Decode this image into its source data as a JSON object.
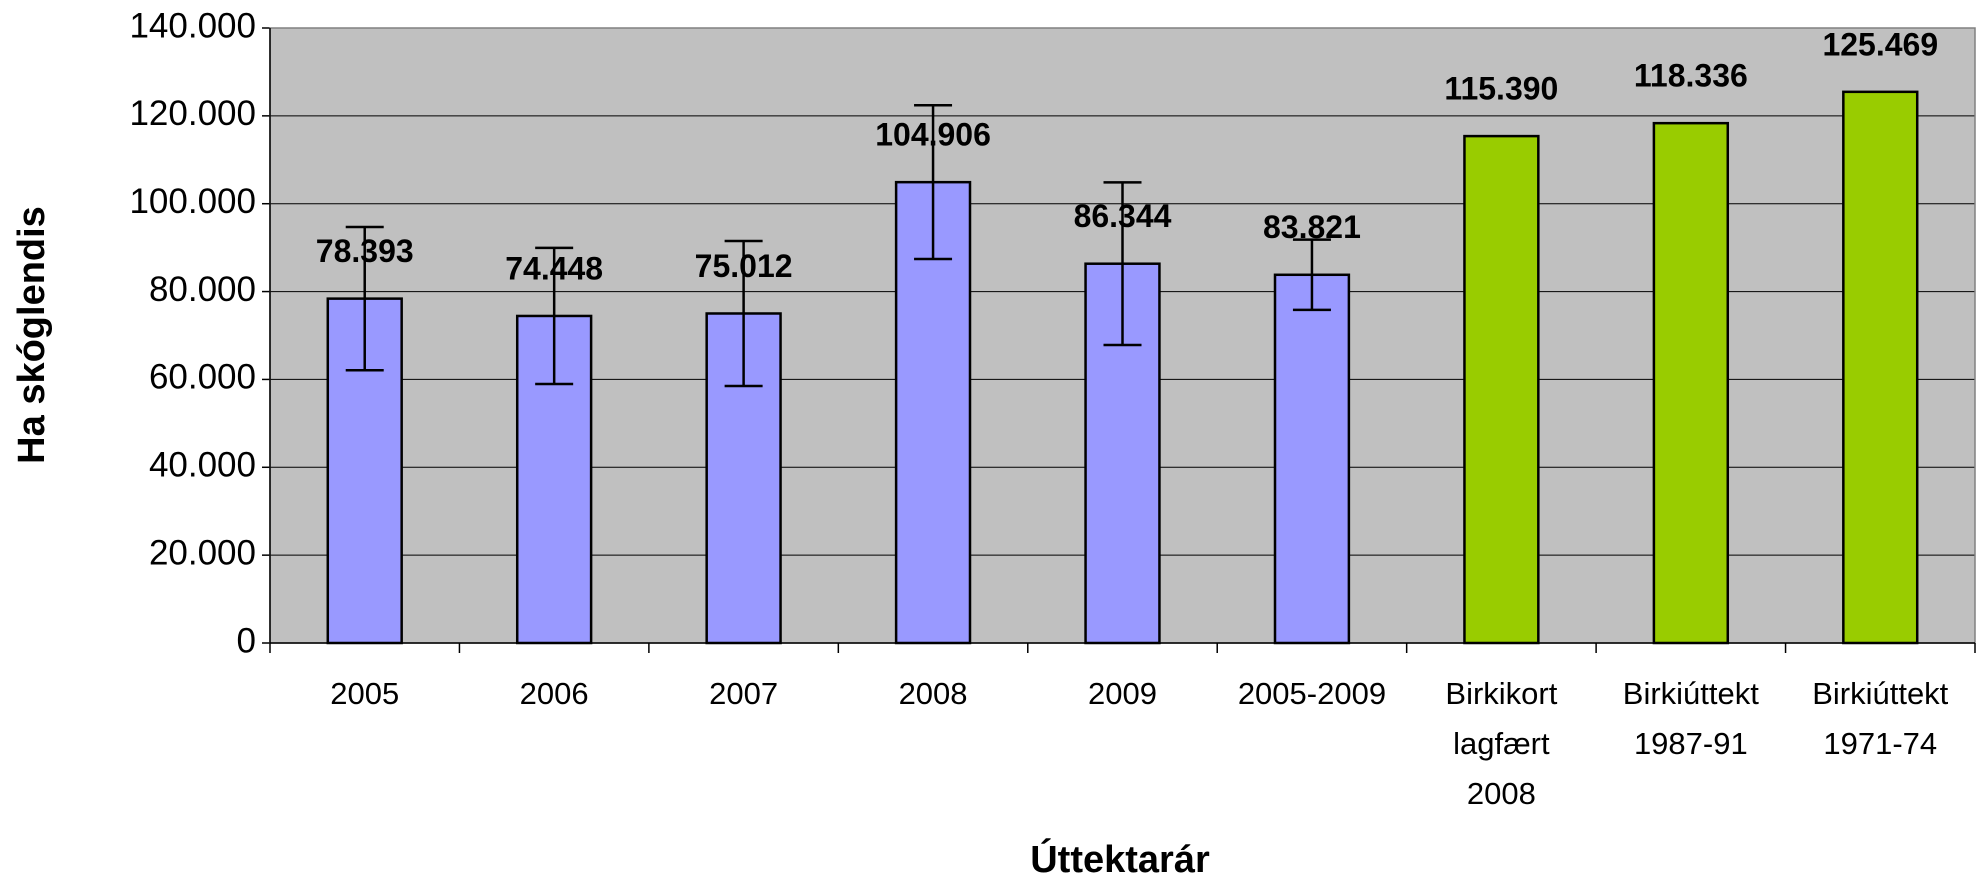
{
  "chart_data": {
    "type": "bar",
    "y_label": "Ha skóglendis",
    "x_label": "Úttektarár",
    "categories": [
      "2005",
      "2006",
      "2007",
      "2008",
      "2009",
      "2005-2009",
      "Birkikort\nlagfært\n2008",
      "Birkiúttekt\n1987-91",
      "Birkiúttekt\n1971-74"
    ],
    "values": [
      78393,
      74448,
      75012,
      104906,
      86344,
      83821,
      115390,
      118336,
      125469
    ],
    "value_labels": [
      "78.393",
      "74.448",
      "75.012",
      "104.906",
      "86.344",
      "83.821",
      "115.390",
      "118.336",
      "125.469"
    ],
    "errors": [
      16300,
      15500,
      16500,
      17500,
      18500,
      8000,
      null,
      null,
      null
    ],
    "colors": [
      "#9999ff",
      "#9999ff",
      "#9999ff",
      "#9999ff",
      "#9999ff",
      "#9999ff",
      "#99cc00",
      "#99cc00",
      "#99cc00"
    ],
    "ylim": [
      0,
      140000
    ],
    "yticks": [
      0,
      {
        "value": 20000,
        "label": "20.000"
      },
      {
        "value": 40000,
        "label": "40.000"
      },
      {
        "value": 60000,
        "label": "60.000"
      },
      {
        "value": 80000,
        "label": "80.000"
      },
      {
        "value": 100000,
        "label": "100.000"
      },
      {
        "value": 120000,
        "label": "120.000"
      },
      {
        "value": 140000,
        "label": "140.000"
      }
    ],
    "grid": true,
    "plot_background": "#c0c0c0"
  }
}
